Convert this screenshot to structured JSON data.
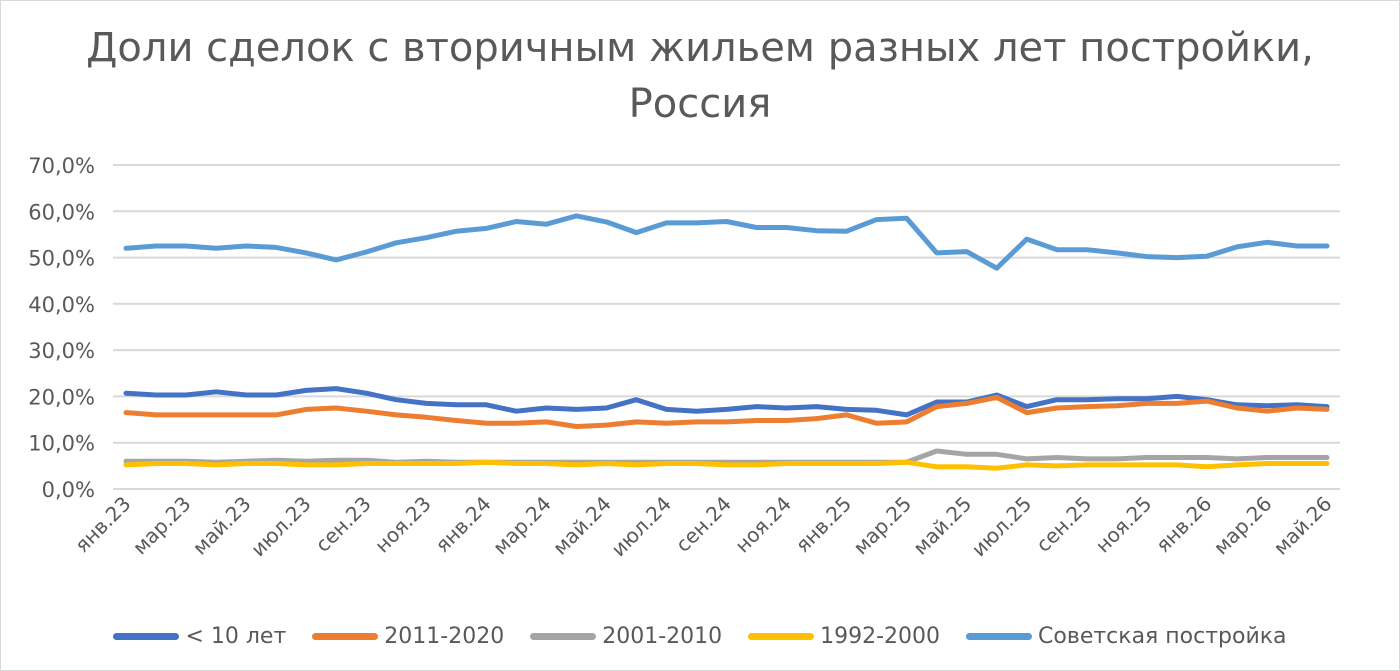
{
  "chart_data": {
    "type": "line",
    "title_lines": [
      "Доли сделок с вторичным жильем разных лет постройки,",
      "Россия"
    ],
    "ylim": [
      0,
      70
    ],
    "y_tick_labels": [
      "0,0%",
      "10,0%",
      "20,0%",
      "30,0%",
      "40,0%",
      "50,0%",
      "60,0%",
      "70,0%"
    ],
    "x": [
      "янв.23",
      "фев.23",
      "мар.23",
      "апр.23",
      "май.23",
      "июн.23",
      "июл.23",
      "авг.23",
      "сен.23",
      "окт.23",
      "ноя.23",
      "дек.23",
      "янв.24",
      "фев.24",
      "мар.24",
      "апр.24",
      "май.24",
      "июн.24",
      "июл.24",
      "авг.24",
      "сен.24",
      "окт.24",
      "ноя.24",
      "дек.24",
      "янв.25",
      "фев.25",
      "мар.25",
      "апр.25",
      "май.25",
      "июн.25",
      "июл.25",
      "авг.25",
      "сен.25",
      "окт.25",
      "ноя.25",
      "дек.25",
      "янв.26",
      "фев.26",
      "мар.26",
      "апр.26",
      "май.26"
    ],
    "x_tick_labels": [
      "янв.23",
      "мар.23",
      "май.23",
      "июл.23",
      "сен.23",
      "ноя.23",
      "янв.24",
      "мар.24",
      "май.24",
      "июл.24",
      "сен.24",
      "ноя.24",
      "янв.25",
      "мар.25",
      "май.25",
      "июл.25",
      "сен.25",
      "ноя.25",
      "янв.26",
      "мар.26",
      "май.26"
    ],
    "grid": true,
    "legend_position": "bottom",
    "series": [
      {
        "name": "< 10 лет",
        "color": "#4472c4",
        "values": [
          20.7,
          20.3,
          20.3,
          21.0,
          20.3,
          20.3,
          21.3,
          21.7,
          20.7,
          19.3,
          18.5,
          18.2,
          18.2,
          16.8,
          17.5,
          17.2,
          17.5,
          19.3,
          17.2,
          16.8,
          17.2,
          17.8,
          17.5,
          17.8,
          17.2,
          17.0,
          16.0,
          18.8,
          18.8,
          20.3,
          17.8,
          19.3,
          19.3,
          19.5,
          19.5,
          20.0,
          19.3,
          18.2,
          18.0,
          18.2,
          17.8
        ]
      },
      {
        "name": "2011-2020",
        "color": "#ed7d31",
        "values": [
          16.5,
          16.0,
          16.0,
          16.0,
          16.0,
          16.0,
          17.2,
          17.5,
          16.8,
          16.0,
          15.5,
          14.8,
          14.2,
          14.2,
          14.5,
          13.5,
          13.8,
          14.5,
          14.2,
          14.5,
          14.5,
          14.8,
          14.8,
          15.2,
          16.0,
          14.2,
          14.5,
          17.8,
          18.5,
          19.8,
          16.5,
          17.5,
          17.8,
          18.0,
          18.5,
          18.5,
          19.0,
          17.5,
          16.8,
          17.5,
          17.2
        ]
      },
      {
        "name": "2001-2010",
        "color": "#a5a5a5",
        "values": [
          6.0,
          6.0,
          6.0,
          5.8,
          6.0,
          6.2,
          6.0,
          6.2,
          6.2,
          5.8,
          6.0,
          5.8,
          5.8,
          5.8,
          5.8,
          5.8,
          5.8,
          5.8,
          5.8,
          5.8,
          5.8,
          5.8,
          5.8,
          5.8,
          5.8,
          5.8,
          5.8,
          8.2,
          7.5,
          7.5,
          6.5,
          6.8,
          6.5,
          6.5,
          6.8,
          6.8,
          6.8,
          6.5,
          6.8,
          6.8,
          6.8
        ]
      },
      {
        "name": "1992-2000",
        "color": "#ffc000",
        "values": [
          5.2,
          5.5,
          5.5,
          5.2,
          5.5,
          5.5,
          5.2,
          5.2,
          5.5,
          5.5,
          5.5,
          5.5,
          5.8,
          5.5,
          5.5,
          5.2,
          5.5,
          5.2,
          5.5,
          5.5,
          5.2,
          5.2,
          5.5,
          5.5,
          5.5,
          5.5,
          5.8,
          4.8,
          4.8,
          4.5,
          5.2,
          5.0,
          5.2,
          5.2,
          5.2,
          5.2,
          4.8,
          5.2,
          5.5,
          5.5,
          5.5
        ]
      },
      {
        "name": "Советская постройка",
        "color": "#5b9bd5",
        "values": [
          52.0,
          52.5,
          52.5,
          52.0,
          52.5,
          52.2,
          51.0,
          49.5,
          51.2,
          53.2,
          54.3,
          55.7,
          56.3,
          57.8,
          57.2,
          59.0,
          57.7,
          55.4,
          57.5,
          57.5,
          57.8,
          56.5,
          56.5,
          55.8,
          55.7,
          58.2,
          58.5,
          51.0,
          51.3,
          47.7,
          54.0,
          51.7,
          51.7,
          51.0,
          50.2,
          50.0,
          50.3,
          52.3,
          53.3,
          52.5,
          52.5
        ]
      }
    ]
  }
}
